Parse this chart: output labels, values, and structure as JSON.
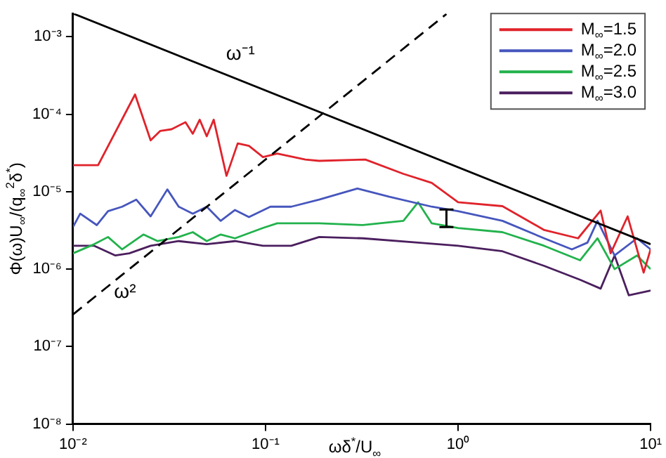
{
  "chart_data": {
    "type": "line",
    "xlabel": "ωδ$^{*}$/U$_{∞}$",
    "ylabel": "Φ(ω)U$_{∞}$/(q$_{∞}$$^{2}$δ$^{*}$)",
    "log": "xy",
    "grid": false,
    "legend": "top right",
    "xlim": [
      0.01,
      10
    ],
    "ylim": [
      1e-08,
      0.002
    ],
    "xticks": [
      {
        "value": 0.01,
        "label": "10⁻²"
      },
      {
        "value": 0.1,
        "label": "10⁻¹"
      },
      {
        "value": 1,
        "label": "10⁰"
      },
      {
        "value": 10,
        "label": "10¹"
      }
    ],
    "yticks": [
      {
        "value": 1e-08,
        "label": "10⁻⁸"
      },
      {
        "value": 1e-07,
        "label": "10⁻⁷"
      },
      {
        "value": 1e-06,
        "label": "10⁻⁶"
      },
      {
        "value": 1e-05,
        "label": "10⁻⁵"
      },
      {
        "value": 0.0001,
        "label": "10⁻⁴"
      },
      {
        "value": 0.001,
        "label": "10⁻³"
      }
    ],
    "annotations": [
      "ω⁻¹",
      "ω²"
    ],
    "series": [
      {
        "name": "M$_{∞}$=1.5",
        "color": "#e0232b",
        "marker": "none",
        "x": [
          0.01,
          0.0135,
          0.021,
          0.0253,
          0.0284,
          0.0325,
          0.0384,
          0.0419,
          0.0455,
          0.0495,
          0.0538,
          0.0627,
          0.0717,
          0.082,
          0.097,
          0.115,
          0.161,
          0.19,
          0.33,
          0.52,
          0.73,
          1.0,
          1.7,
          2.8,
          4.2,
          5.5,
          6.2,
          7.6,
          9.2,
          10
        ],
        "values": [
          2.2e-05,
          2.2e-05,
          0.00018,
          4.6e-05,
          6.1e-05,
          6.4e-05,
          7.9e-05,
          5.6e-05,
          8.5e-05,
          5.2e-05,
          8.5e-05,
          1.6e-05,
          4.2e-05,
          3.9e-05,
          2.8e-05,
          3.1e-05,
          2.6e-05,
          2.5e-05,
          2.6e-05,
          1.7e-05,
          1.3e-05,
          7.3e-06,
          6.5e-06,
          3.2e-06,
          2.5e-06,
          5.7e-06,
          1.6e-06,
          4.8e-06,
          9e-07,
          1.8e-06
        ]
      },
      {
        "name": "M$_{∞}$=2.0",
        "color": "#4656bd",
        "marker": "none",
        "x": [
          0.01,
          0.0109,
          0.0133,
          0.0152,
          0.018,
          0.0213,
          0.0253,
          0.0309,
          0.0354,
          0.0419,
          0.0495,
          0.0585,
          0.0694,
          0.082,
          0.106,
          0.136,
          0.19,
          0.3,
          0.44,
          0.73,
          1.0,
          1.7,
          2.8,
          3.9,
          4.7,
          5.3,
          6.5,
          8.5,
          10
        ],
        "values": [
          3.5e-06,
          5.2e-06,
          3.7e-06,
          5.6e-06,
          6.4e-06,
          7.9e-06,
          4.8e-06,
          1.07e-05,
          6.4e-06,
          5.2e-06,
          6.4e-06,
          4.2e-06,
          5.8e-06,
          4.7e-06,
          6.4e-06,
          6.4e-06,
          7.9e-06,
          1.1e-05,
          8.6e-06,
          6.4e-06,
          5.6e-06,
          4.2e-06,
          2.5e-06,
          1.8e-06,
          2.2e-06,
          4.2e-06,
          1.5e-06,
          2.5e-06,
          1.8e-06
        ]
      },
      {
        "name": "M$_{∞}$=2.5",
        "color": "#22b24c",
        "marker": "none",
        "x": [
          0.01,
          0.0129,
          0.0152,
          0.018,
          0.0232,
          0.0275,
          0.0354,
          0.0419,
          0.0495,
          0.0585,
          0.0694,
          0.097,
          0.115,
          0.19,
          0.32,
          0.52,
          0.62,
          0.73,
          1.0,
          1.7,
          2.8,
          4.3,
          5.3,
          6.5,
          8.5,
          10
        ],
        "values": [
          1.6e-06,
          2.1e-06,
          2.6e-06,
          1.8e-06,
          2.8e-06,
          2.3e-06,
          2.6e-06,
          3e-06,
          2.3e-06,
          2.8e-06,
          2.5e-06,
          3.4e-06,
          3.9e-06,
          3.9e-06,
          3.7e-06,
          4.2e-06,
          7.3e-06,
          3.9e-06,
          3.4e-06,
          3e-06,
          2e-06,
          1.3e-06,
          2.5e-06,
          1e-06,
          1.5e-06,
          1e-06
        ]
      },
      {
        "name": "M$_{∞}$=3.0",
        "color": "#4b1f5e",
        "marker": "none",
        "x": [
          0.01,
          0.0129,
          0.0166,
          0.0196,
          0.0253,
          0.0354,
          0.0495,
          0.0694,
          0.097,
          0.136,
          0.19,
          0.32,
          0.62,
          1.0,
          1.7,
          2.8,
          4.3,
          5.5,
          6.5,
          7.7,
          10
        ],
        "values": [
          2e-06,
          2e-06,
          1.5e-06,
          1.6e-06,
          2e-06,
          2.3e-06,
          2.1e-06,
          2.3e-06,
          2e-06,
          2e-06,
          2.6e-06,
          2.5e-06,
          2.2e-06,
          2e-06,
          1.7e-06,
          1.1e-06,
          7.3e-07,
          5.6e-07,
          1.5e-06,
          4.6e-07,
          5.3e-07
        ]
      },
      {
        "type": "line",
        "color": "#000000",
        "line_style": "solid",
        "marker": "none",
        "x": [
          0.01,
          10
        ],
        "values": [
          0.002,
          2.1e-06
        ]
      },
      {
        "type": "line",
        "color": "#000000",
        "line_style": "dashed",
        "marker": "none",
        "x": [
          0.01,
          0.87
        ],
        "values": [
          2.6e-07,
          0.00197
        ]
      },
      {
        "type": "scatter",
        "color": "#000000",
        "x": [
          0.87
        ],
        "values": [
          4.6e-06
        ],
        "errors": [
          [
            3.5e-06,
            5.9e-06
          ]
        ]
      }
    ]
  }
}
